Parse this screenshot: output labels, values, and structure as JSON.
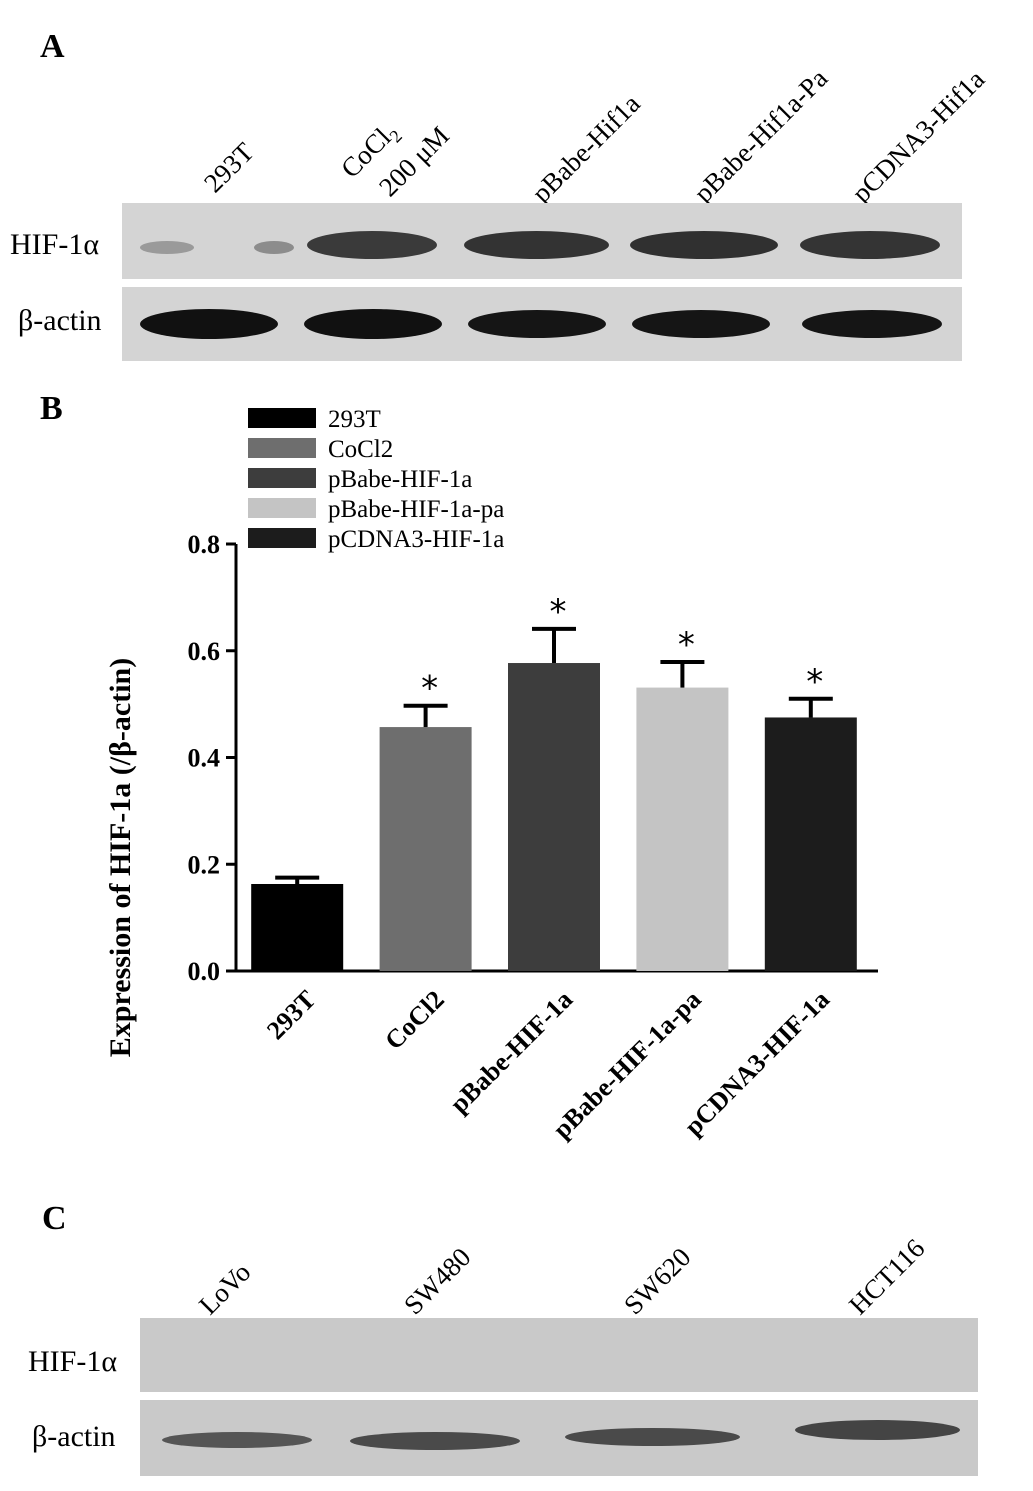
{
  "panels": {
    "a": {
      "letter": "A",
      "lanes": [
        "293T",
        "CoCl",
        "200 μM",
        "pBabe-Hif1a",
        "pBabe-Hif1a-Pa",
        "pCDNA3-Hif1a"
      ],
      "cocl_subscript": "2",
      "rows": [
        "HIF-1α",
        "β-actin"
      ]
    },
    "b": {
      "letter": "B"
    },
    "c": {
      "letter": "C",
      "lanes": [
        "LoVo",
        "SW480",
        "SW620",
        "HCT116"
      ],
      "rows": [
        "HIF-1α",
        "β-actin"
      ]
    }
  },
  "chart_data": {
    "type": "bar",
    "categories": [
      "293T",
      "CoCl2",
      "pBabe-HIF-1a",
      "pBabe-HIF-1a-pa",
      "pCDNA3-HIF-1a"
    ],
    "values": [
      0.163,
      0.457,
      0.577,
      0.531,
      0.475
    ],
    "errors": [
      0.012,
      0.04,
      0.064,
      0.048,
      0.035
    ],
    "significance": [
      "",
      "*",
      "*",
      "*",
      "*"
    ],
    "colors": [
      "#000000",
      "#6e6e6e",
      "#3d3d3d",
      "#c4c4c4",
      "#1c1c1c"
    ],
    "ylabel": "Expression of HIF-1a (/β-actin)",
    "ylim": [
      0,
      0.8
    ],
    "yticks": [
      "0.0",
      "0.2",
      "0.4",
      "0.6",
      "0.8"
    ],
    "legend": [
      "293T",
      "CoCl2",
      "pBabe-HIF-1a",
      "pBabe-HIF-1a-pa",
      "pCDNA3-HIF-1a"
    ],
    "legend_position": "top-left",
    "grid": false
  }
}
